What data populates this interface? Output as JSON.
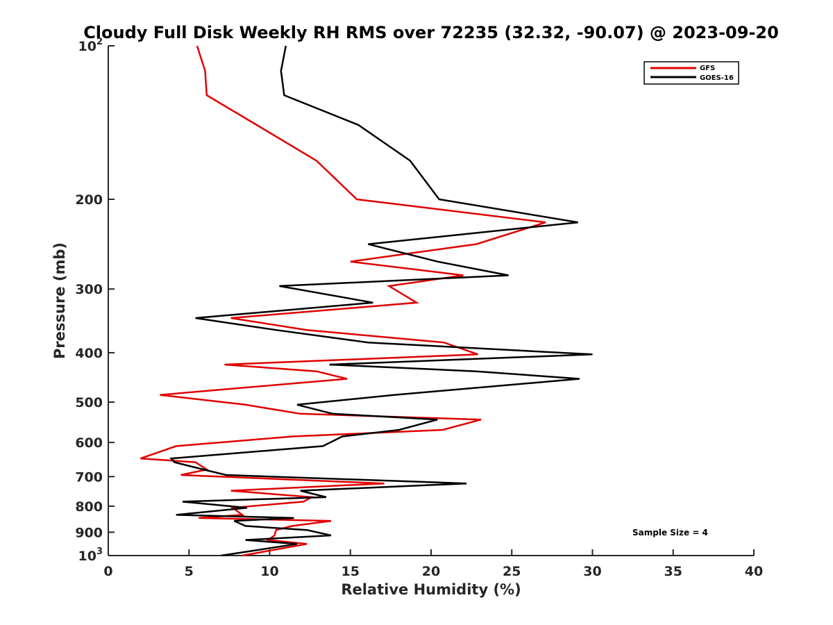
{
  "chart_data": {
    "type": "line",
    "title": "Cloudy Full Disk Weekly RH RMS over 72235 (32.32, -90.07) @ 2023-09-20",
    "xlabel": "Relative Humidity (%)",
    "ylabel": "Pressure (mb)",
    "xlim": [
      0,
      40
    ],
    "ylim": [
      100,
      1000
    ],
    "yscale": "log",
    "y_reversed": true,
    "xticks": [
      "0",
      "5",
      "10",
      "15",
      "20",
      "25",
      "30",
      "35",
      "40"
    ],
    "yticks": [
      {
        "value": 100,
        "label": "10",
        "sup": "2"
      },
      {
        "value": 200,
        "label": "200"
      },
      {
        "value": 300,
        "label": "300"
      },
      {
        "value": 400,
        "label": "400"
      },
      {
        "value": 500,
        "label": "500"
      },
      {
        "value": 600,
        "label": "600"
      },
      {
        "value": 700,
        "label": "700"
      },
      {
        "value": 800,
        "label": "800"
      },
      {
        "value": 900,
        "label": "900"
      },
      {
        "value": 1000,
        "label": "10",
        "sup": "3"
      }
    ],
    "legend_position": "top-right",
    "annotation": "Sample Size = 4",
    "series": [
      {
        "name": "GFS",
        "color": "#e00000",
        "x": [
          5.5,
          6.0,
          6.1,
          9.2,
          12.9,
          15.4,
          27.1,
          22.8,
          15.0,
          22.0,
          17.4,
          19.1,
          7.6,
          12.3,
          20.8,
          22.9,
          7.2,
          12.9,
          14.8,
          3.2,
          8.5,
          11.9,
          23.1,
          20.7,
          11.4,
          4.2,
          2.0,
          5.4,
          6.1,
          4.5,
          17.1,
          7.6,
          12.6,
          12.1,
          7.7,
          8.3,
          5.6,
          13.8,
          11.4,
          10.4,
          10.3,
          9.9,
          12.3,
          8.3
        ],
        "y": [
          100,
          112,
          125,
          143,
          168,
          200,
          222,
          245,
          265,
          282,
          296,
          319,
          342,
          361,
          382,
          403,
          422,
          435,
          450,
          484,
          506,
          527,
          541,
          567,
          584,
          610,
          645,
          656,
          678,
          695,
          722,
          746,
          768,
          784,
          806,
          832,
          844,
          855,
          875,
          891,
          913,
          932,
          949,
          1000
        ]
      },
      {
        "name": "GOES-16",
        "color": "#000000",
        "x": [
          11.0,
          10.7,
          10.9,
          15.5,
          18.7,
          20.5,
          29.1,
          16.1,
          20.4,
          24.8,
          10.6,
          16.4,
          5.4,
          10.4,
          16.1,
          30.0,
          13.7,
          22.8,
          29.2,
          17.7,
          11.7,
          13.9,
          20.4,
          18.0,
          14.5,
          13.3,
          3.9,
          4.1,
          5.9,
          7.3,
          22.2,
          11.9,
          13.5,
          4.6,
          8.6,
          4.2,
          11.5,
          7.8,
          8.5,
          12.3,
          13.8,
          8.5,
          11.7,
          7.0
        ],
        "y": [
          100,
          112,
          125,
          143,
          168,
          200,
          222,
          245,
          265,
          282,
          296,
          319,
          342,
          361,
          382,
          403,
          422,
          435,
          450,
          484,
          506,
          527,
          541,
          567,
          584,
          610,
          645,
          656,
          678,
          695,
          722,
          746,
          768,
          784,
          806,
          832,
          844,
          855,
          875,
          891,
          913,
          932,
          949,
          1000
        ]
      }
    ]
  }
}
